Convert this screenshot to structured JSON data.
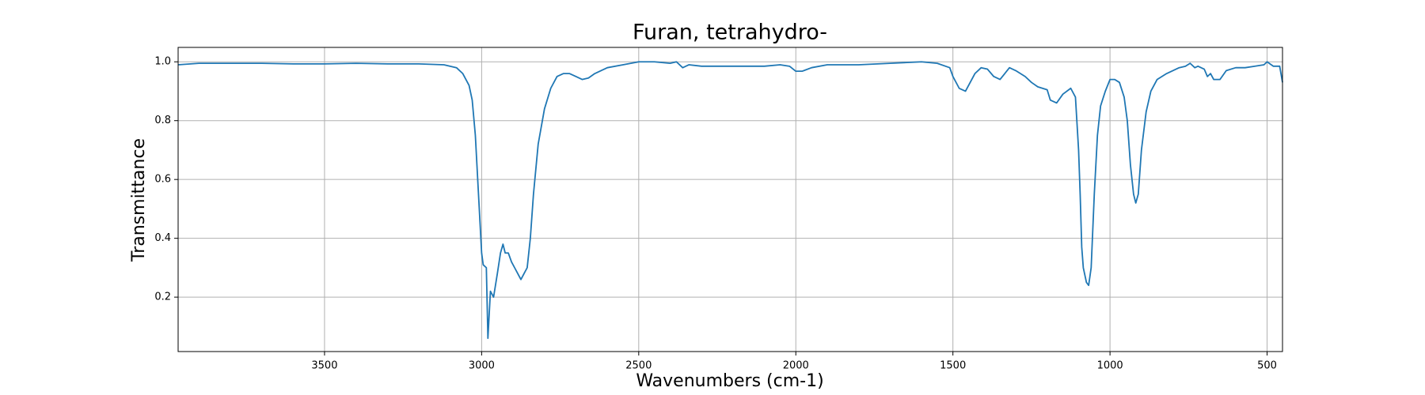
{
  "chart_data": {
    "type": "line",
    "title": "Furan, tetrahydro-",
    "xlabel": "Wavenumbers (cm-1)",
    "ylabel": "Transmittance",
    "x": [
      3966,
      3900,
      3800,
      3700,
      3600,
      3500,
      3400,
      3300,
      3200,
      3120,
      3080,
      3060,
      3040,
      3030,
      3020,
      3010,
      3000,
      2995,
      2985,
      2980,
      2972,
      2962,
      2950,
      2940,
      2932,
      2925,
      2915,
      2905,
      2895,
      2885,
      2875,
      2865,
      2855,
      2845,
      2835,
      2820,
      2800,
      2780,
      2760,
      2740,
      2720,
      2700,
      2680,
      2660,
      2640,
      2600,
      2550,
      2500,
      2450,
      2400,
      2380,
      2360,
      2340,
      2300,
      2200,
      2100,
      2050,
      2020,
      2000,
      1980,
      1950,
      1900,
      1800,
      1700,
      1600,
      1550,
      1510,
      1500,
      1480,
      1460,
      1445,
      1430,
      1410,
      1390,
      1370,
      1350,
      1335,
      1320,
      1300,
      1270,
      1250,
      1230,
      1200,
      1190,
      1170,
      1150,
      1125,
      1110,
      1100,
      1095,
      1090,
      1085,
      1075,
      1068,
      1060,
      1050,
      1040,
      1030,
      1015,
      1000,
      985,
      970,
      955,
      945,
      935,
      925,
      918,
      910,
      900,
      885,
      870,
      850,
      820,
      800,
      780,
      760,
      745,
      730,
      720,
      700,
      690,
      680,
      670,
      650,
      630,
      600,
      570,
      540,
      510,
      500,
      480,
      460,
      451
    ],
    "series": [
      {
        "name": "Transmittance",
        "color": "#1f77b4",
        "values": [
          0.99,
          0.995,
          0.995,
          0.995,
          0.993,
          0.993,
          0.995,
          0.993,
          0.993,
          0.99,
          0.98,
          0.96,
          0.92,
          0.87,
          0.75,
          0.55,
          0.35,
          0.31,
          0.3,
          0.06,
          0.22,
          0.2,
          0.28,
          0.35,
          0.38,
          0.35,
          0.35,
          0.32,
          0.3,
          0.28,
          0.26,
          0.28,
          0.3,
          0.4,
          0.55,
          0.72,
          0.84,
          0.91,
          0.95,
          0.96,
          0.96,
          0.95,
          0.94,
          0.945,
          0.96,
          0.98,
          0.99,
          1.0,
          1.0,
          0.995,
          1.0,
          0.98,
          0.99,
          0.985,
          0.985,
          0.985,
          0.99,
          0.985,
          0.968,
          0.968,
          0.98,
          0.99,
          0.99,
          0.995,
          1.0,
          0.995,
          0.98,
          0.95,
          0.91,
          0.9,
          0.93,
          0.96,
          0.98,
          0.975,
          0.95,
          0.94,
          0.96,
          0.98,
          0.97,
          0.95,
          0.93,
          0.915,
          0.905,
          0.87,
          0.86,
          0.89,
          0.91,
          0.88,
          0.7,
          0.55,
          0.37,
          0.3,
          0.25,
          0.24,
          0.3,
          0.55,
          0.75,
          0.85,
          0.9,
          0.94,
          0.94,
          0.93,
          0.88,
          0.8,
          0.65,
          0.55,
          0.52,
          0.55,
          0.7,
          0.83,
          0.9,
          0.94,
          0.96,
          0.97,
          0.98,
          0.985,
          0.995,
          0.98,
          0.985,
          0.975,
          0.95,
          0.96,
          0.94,
          0.94,
          0.97,
          0.98,
          0.98,
          0.985,
          0.99,
          1.0,
          0.985,
          0.985,
          0.93
        ]
      }
    ],
    "xlim": [
      3966,
      451
    ],
    "xticks": [
      3500,
      3000,
      2500,
      2000,
      1500,
      1000,
      500
    ],
    "ylim": [
      0.015,
      1.049
    ],
    "yticks": [
      0.2,
      0.4,
      0.6,
      0.8,
      {
        "value": 1,
        "label": "1.0"
      }
    ],
    "grid": true
  }
}
